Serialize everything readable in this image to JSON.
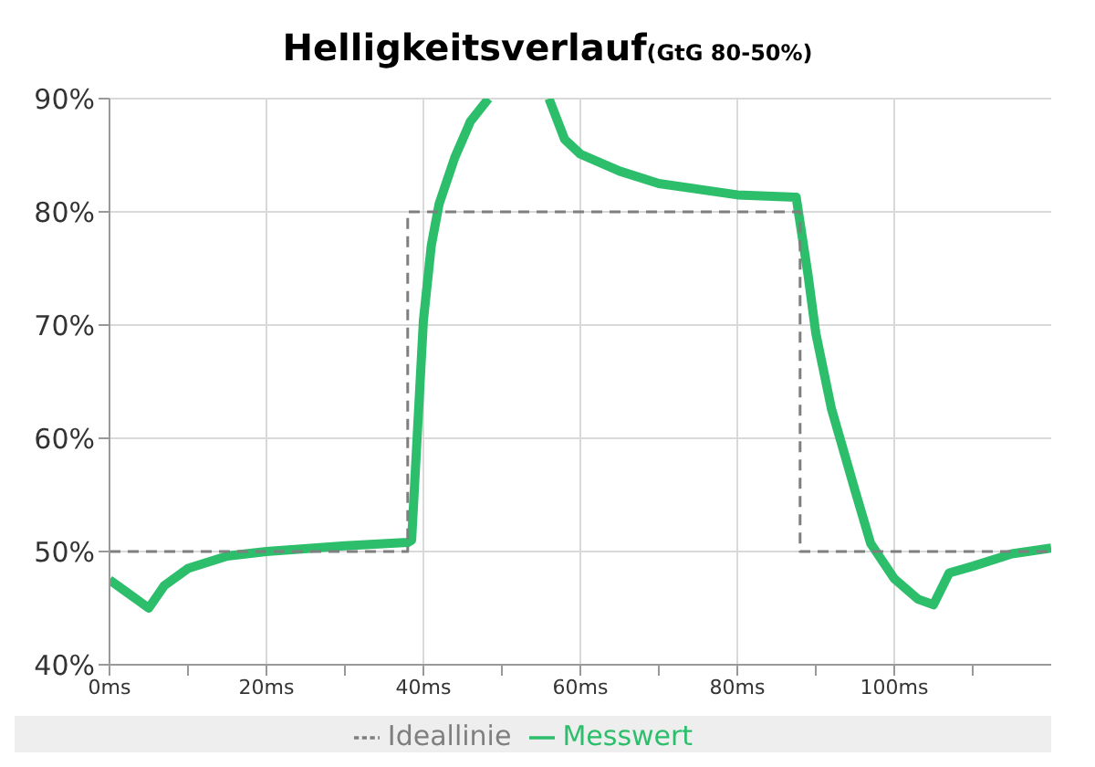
{
  "chart_data": {
    "type": "line",
    "title": "Helligkeitsverlauf",
    "subtitle": "(GtG 80-50%)",
    "xlim": [
      0,
      120
    ],
    "xticks": [
      {
        "value": 0,
        "label": "0ms"
      },
      {
        "value": 10,
        "label": null
      },
      {
        "value": 20,
        "label": "20ms"
      },
      {
        "value": 30,
        "label": null
      },
      {
        "value": 40,
        "label": "40ms"
      },
      {
        "value": 50,
        "label": null
      },
      {
        "value": 60,
        "label": "60ms"
      },
      {
        "value": 70,
        "label": null
      },
      {
        "value": 80,
        "label": "80ms"
      },
      {
        "value": 90,
        "label": null
      },
      {
        "value": 100,
        "label": "100ms"
      },
      {
        "value": 110,
        "label": null
      }
    ],
    "ylim": [
      40,
      90
    ],
    "yticks": [
      {
        "value": 40,
        "label": "40%"
      },
      {
        "value": 50,
        "label": "50%"
      },
      {
        "value": 60,
        "label": "60%"
      },
      {
        "value": 70,
        "label": "70%"
      },
      {
        "value": 80,
        "label": "80%"
      },
      {
        "value": 90,
        "label": "90%"
      }
    ],
    "grid": true,
    "legend": "bottom",
    "marker": "none",
    "series": [
      {
        "name": "Messwert",
        "color": "#2dbe6c",
        "line_style": "solid",
        "x": [
          0,
          2,
          4,
          5,
          7,
          10,
          15,
          20,
          30,
          38,
          38.5,
          40,
          41,
          42,
          44,
          46,
          48.3,
          50,
          53,
          56,
          58,
          60,
          65,
          70,
          80,
          87.5,
          89,
          90,
          92,
          95,
          97,
          100,
          103,
          105,
          107,
          110,
          115,
          120
        ],
        "values": [
          47.5,
          46.5,
          45.5,
          45,
          47,
          48.5,
          49.6,
          50,
          50.5,
          50.8,
          51,
          70.4,
          77,
          80.7,
          84.8,
          88,
          90,
          null,
          null,
          90,
          86.4,
          85.1,
          83.6,
          82.5,
          81.5,
          81.3,
          74.5,
          69.3,
          62.6,
          55.4,
          50.7,
          47.6,
          45.8,
          45.3,
          48.1,
          48.7,
          49.8,
          50.3
        ]
      },
      {
        "name": "Ideallinie",
        "color": "#7f7f7f",
        "line_style": "dashed",
        "x": [
          0,
          38,
          38,
          88,
          88,
          120
        ],
        "values": [
          50,
          50,
          80,
          80,
          50,
          50
        ]
      }
    ]
  }
}
